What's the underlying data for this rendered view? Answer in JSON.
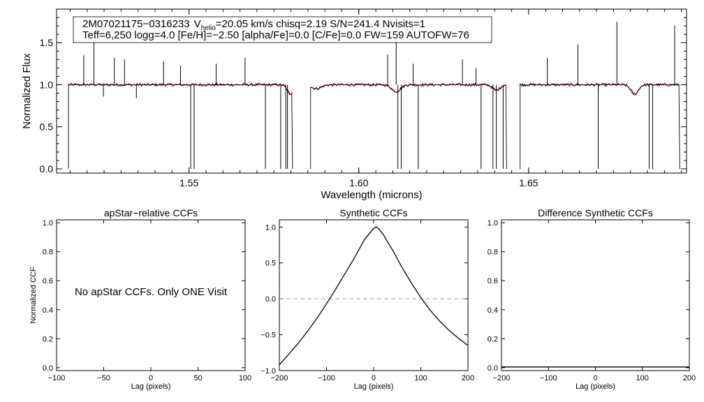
{
  "info_box": {
    "line1_id": "2M07021175−0316233",
    "line1_v": "V",
    "line1_sub": "helio",
    "line1_rest": "=20.05 km/s  chisq=2.19  S/N=241.4  Nvisits=1",
    "line2": "Teff=6,250 logg=4.0 [Fe/H]=−2.50 [alpha/Fe]=0.0 [C/Fe]=0.0 FW=159 AUTOFW=76"
  },
  "message": "No apStar CCFs.  Only ONE Visit",
  "colors": {
    "observed": "#000000",
    "model": "#e00000",
    "zero_line": "#999999"
  },
  "chart_data": [
    {
      "type": "line",
      "id": "spectrum",
      "xlabel": "Wavelength (microns)",
      "ylabel": "Normalized Flux",
      "xlim": [
        1.511,
        1.6965
      ],
      "ylim": [
        -0.05,
        1.9
      ],
      "xticks": [
        1.55,
        1.6,
        1.65
      ],
      "xtick_labels": [
        "1.55",
        "1.60",
        "1.65"
      ],
      "yticks": [
        0.0,
        0.5,
        1.0,
        1.5
      ],
      "ytick_labels": [
        "0.0",
        "0.5",
        "1.0",
        "1.5"
      ],
      "chips": [
        [
          1.5145,
          1.5805
        ],
        [
          1.5858,
          1.6435
        ],
        [
          1.6475,
          1.6945
        ]
      ],
      "chip_edges": [
        1.5145,
        1.5805,
        1.5858,
        1.6435,
        1.6475,
        1.6945
      ],
      "series": [
        {
          "role": "observed",
          "values_note": "",
          "emission_spikes": [
            [
              1.519,
              1.35
            ],
            [
              1.522,
              1.5
            ],
            [
              1.528,
              1.32
            ],
            [
              1.531,
              1.3
            ],
            [
              1.5425,
              1.28
            ],
            [
              1.5475,
              1.23
            ],
            [
              1.558,
              1.25
            ],
            [
              1.5665,
              1.32
            ],
            [
              1.6085,
              1.36
            ],
            [
              1.611,
              1.7
            ],
            [
              1.616,
              1.25
            ],
            [
              1.6305,
              1.3
            ],
            [
              1.6345,
              1.2
            ],
            [
              1.6645,
              1.48
            ],
            [
              1.676,
              1.75
            ],
            [
              1.693,
              1.7
            ],
            [
              1.6555,
              1.32
            ]
          ],
          "absorption_spikes": [
            [
              1.5248,
              0.86
            ],
            [
              1.5345,
              0.84
            ],
            [
              1.5505,
              0.0
            ],
            [
              1.5515,
              0.0
            ],
            [
              1.5725,
              0.0
            ],
            [
              1.577,
              0.0
            ],
            [
              1.5785,
              0.0
            ],
            [
              1.579,
              0.0
            ],
            [
              1.6115,
              0.0
            ],
            [
              1.6125,
              0.0
            ],
            [
              1.6175,
              0.0
            ],
            [
              1.636,
              0.0
            ],
            [
              1.6395,
              0.0
            ],
            [
              1.6405,
              0.0
            ],
            [
              1.6425,
              0.0
            ],
            [
              1.6705,
              0.0
            ],
            [
              1.6705,
              0.92
            ],
            [
              1.6855,
              0.0
            ],
            [
              1.6865,
              0.0
            ]
          ]
        },
        {
          "role": "model",
          "absorption_dips": [
            [
              1.5798,
              0.88,
              0.0012
            ],
            [
              1.5875,
              0.95,
              0.002
            ],
            [
              1.611,
              0.91,
              0.0018
            ],
            [
              1.6405,
              0.93,
              0.0015
            ],
            [
              1.6812,
              0.88,
              0.0015
            ]
          ]
        }
      ]
    },
    {
      "type": "line",
      "id": "apstar-ccf",
      "title": "apStar−relative CCFs",
      "xlabel": "Lag (pixels)",
      "ylabel": "Normalized CCF",
      "xlim": [
        -100,
        100
      ],
      "ylim": [
        -0.02,
        1.02
      ],
      "xticks": [
        -100,
        -50,
        0,
        50,
        100
      ],
      "xtick_labels": [
        "−100",
        "−50",
        "0",
        "50",
        "100"
      ],
      "yticks": [
        0.0,
        0.2,
        0.4,
        0.6,
        0.8,
        1.0
      ],
      "ytick_labels": [
        "0.0",
        "0.2",
        "0.4",
        "0.6",
        "0.8",
        "1.0"
      ],
      "series": []
    },
    {
      "type": "line",
      "id": "synthetic-ccf",
      "title": "Synthetic CCFs",
      "xlabel": "Lag (pixels)",
      "xlim": [
        -200,
        200
      ],
      "ylim": [
        -1.0,
        1.1
      ],
      "xticks": [
        -200,
        -100,
        0,
        100,
        200
      ],
      "xtick_labels": [
        "−200",
        "−100",
        "0",
        "100",
        "200"
      ],
      "yticks": [
        -1.0,
        -0.5,
        0.0,
        0.5,
        1.0
      ],
      "ytick_labels": [
        "−1.0",
        "−0.5",
        "0.0",
        "0.5",
        "1.0"
      ],
      "zero_line": 0.0,
      "series": [
        {
          "x": [
            -200,
            -180,
            -160,
            -140,
            -120,
            -100,
            -80,
            -60,
            -40,
            -20,
            0,
            5,
            10,
            20,
            40,
            60,
            80,
            100,
            120,
            140,
            160,
            180,
            200
          ],
          "values": [
            -0.92,
            -0.77,
            -0.62,
            -0.45,
            -0.27,
            -0.07,
            0.14,
            0.36,
            0.58,
            0.82,
            0.98,
            1.0,
            0.98,
            0.9,
            0.68,
            0.44,
            0.22,
            0.02,
            -0.16,
            -0.31,
            -0.44,
            -0.55,
            -0.65
          ]
        }
      ]
    },
    {
      "type": "line",
      "id": "difference-ccf",
      "title": "Difference Synthetic CCFs",
      "xlabel": "Lag (pixels)",
      "xlim": [
        -200,
        200
      ],
      "ylim": [
        -0.02,
        1.02
      ],
      "xticks": [
        -200,
        -100,
        0,
        100,
        200
      ],
      "xtick_labels": [
        "−200",
        "−100",
        "0",
        "100",
        "200"
      ],
      "yticks": [
        0.0,
        0.2,
        0.4,
        0.6,
        0.8,
        1.0
      ],
      "ytick_labels": [
        "0.0",
        "0.2",
        "0.4",
        "0.6",
        "0.8",
        "1.0"
      ],
      "series": [
        {
          "x": [
            -200,
            200
          ],
          "values": [
            0.0,
            0.0
          ]
        }
      ]
    }
  ]
}
